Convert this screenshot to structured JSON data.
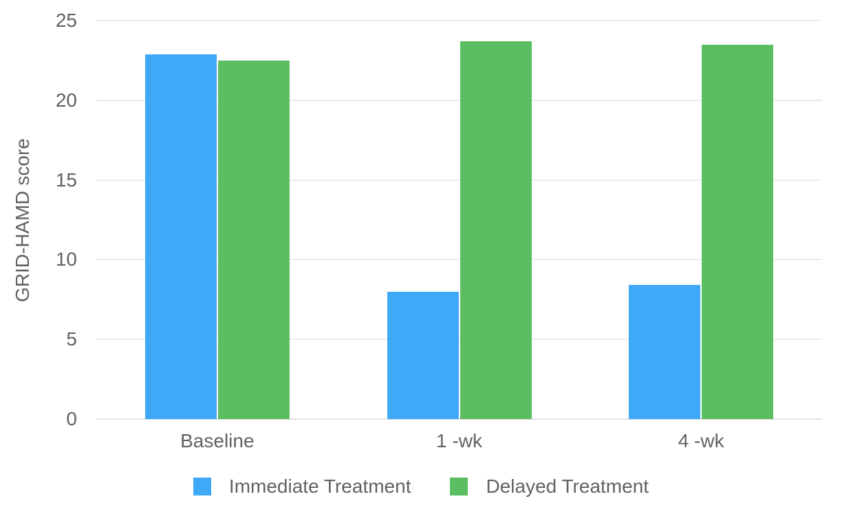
{
  "chart_data": {
    "type": "bar",
    "title": "",
    "categories": [
      "Baseline",
      "1 -wk",
      "4 -wk"
    ],
    "series": [
      {
        "name": "Immediate Treatment",
        "color": "#3fa9f7",
        "values": [
          22.9,
          8.0,
          8.4
        ]
      },
      {
        "name": "Delayed Treatment",
        "color": "#5cbe63",
        "values": [
          22.5,
          23.7,
          23.5
        ]
      }
    ],
    "xlabel": "",
    "ylabel": "GRID-HAMD score",
    "ylim": [
      0,
      25
    ],
    "yticks": [
      0,
      5,
      10,
      15,
      20,
      25
    ],
    "grid": true,
    "legend_position": "bottom",
    "colors": {
      "background": "#ffffff",
      "text": "#616161",
      "gridline": "#ececec",
      "axis_line": "#e2e2e2",
      "series_immediate": "#3fa9f7",
      "series_delayed": "#5cbe63"
    }
  }
}
